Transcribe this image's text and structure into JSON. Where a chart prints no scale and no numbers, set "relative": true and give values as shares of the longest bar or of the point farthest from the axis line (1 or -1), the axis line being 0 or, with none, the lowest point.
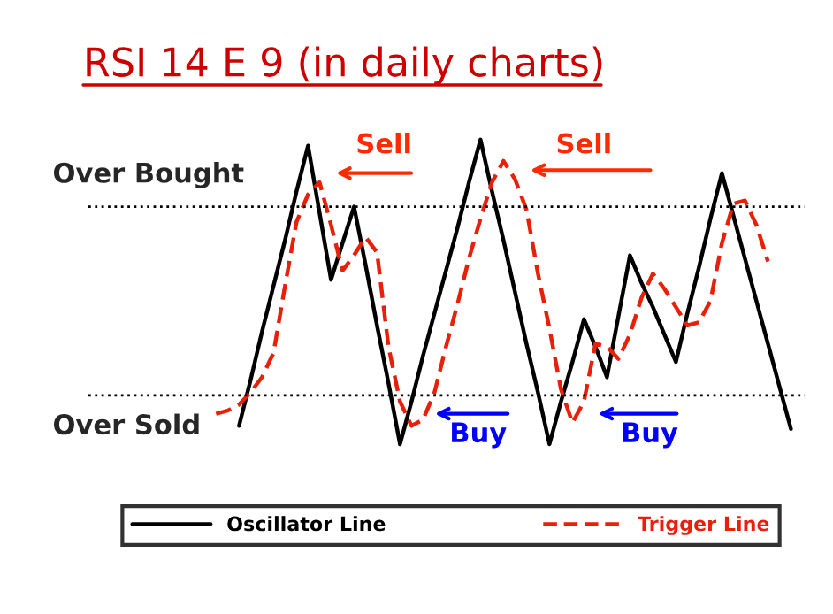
{
  "chart_data": {
    "type": "line",
    "title": "RSI 14 E 9 (in daily charts)",
    "relative": true,
    "legend": "bottom",
    "categories": [
      null,
      null,
      null,
      null,
      null,
      null,
      null,
      null,
      null,
      null,
      null,
      null,
      null,
      null,
      null,
      null,
      null,
      null,
      null,
      null,
      null,
      null,
      null,
      null,
      null,
      null,
      null,
      null,
      null,
      null,
      null,
      null,
      null,
      null,
      null,
      null,
      null,
      null,
      null,
      null,
      null,
      null,
      null,
      null,
      null,
      null,
      null,
      null,
      null,
      null,
      null
    ],
    "series": [
      {
        "name": "Oscillator Line",
        "color": "#000000",
        "line_style": "solid",
        "values": [
          null,
          null,
          0.06,
          0.21,
          0.37,
          0.52,
          0.67,
          0.83,
          0.98,
          0.76,
          0.54,
          0.66,
          0.78,
          0.59,
          0.39,
          0.2,
          0,
          0.14,
          0.29,
          0.43,
          0.57,
          0.71,
          0.86,
          1,
          0.83,
          0.67,
          0.5,
          0.33,
          0.17,
          0,
          0.14,
          0.27,
          0.41,
          0.32,
          0.22,
          0.42,
          0.62,
          0.53,
          0.45,
          0.36,
          0.27,
          0.43,
          0.58,
          0.74,
          0.89,
          0.75,
          0.61,
          0.47,
          0.33,
          0.19,
          0.05
        ]
      },
      {
        "name": "Trigger Line",
        "color": "#e8200a",
        "line_style": "dashed",
        "values": [
          0.1,
          0.11,
          0.13,
          0.17,
          0.22,
          0.3,
          0.52,
          0.73,
          0.82,
          0.86,
          0.72,
          0.57,
          0.62,
          0.68,
          0.63,
          0.32,
          0.14,
          0.06,
          0.08,
          0.17,
          0.32,
          0.46,
          0.61,
          0.74,
          0.86,
          0.93,
          0.87,
          0.77,
          0.56,
          0.38,
          0.18,
          0.07,
          0.14,
          0.33,
          0.32,
          0.28,
          0.36,
          0.48,
          0.56,
          0.51,
          0.45,
          0.39,
          0.4,
          0.47,
          0.66,
          0.79,
          0.8,
          0.72,
          0.6,
          null,
          null
        ]
      }
    ],
    "ref_lines": [
      {
        "axis": "y",
        "value": 0.78,
        "label": "Over Bought",
        "color": "#000000",
        "line_style": "dotted"
      },
      {
        "axis": "y",
        "value": 0.16,
        "label": "Over Sold",
        "color": "#000000",
        "line_style": "dotted"
      }
    ],
    "annotations": [
      "Sell",
      "Sell",
      "Buy",
      "Buy"
    ]
  }
}
